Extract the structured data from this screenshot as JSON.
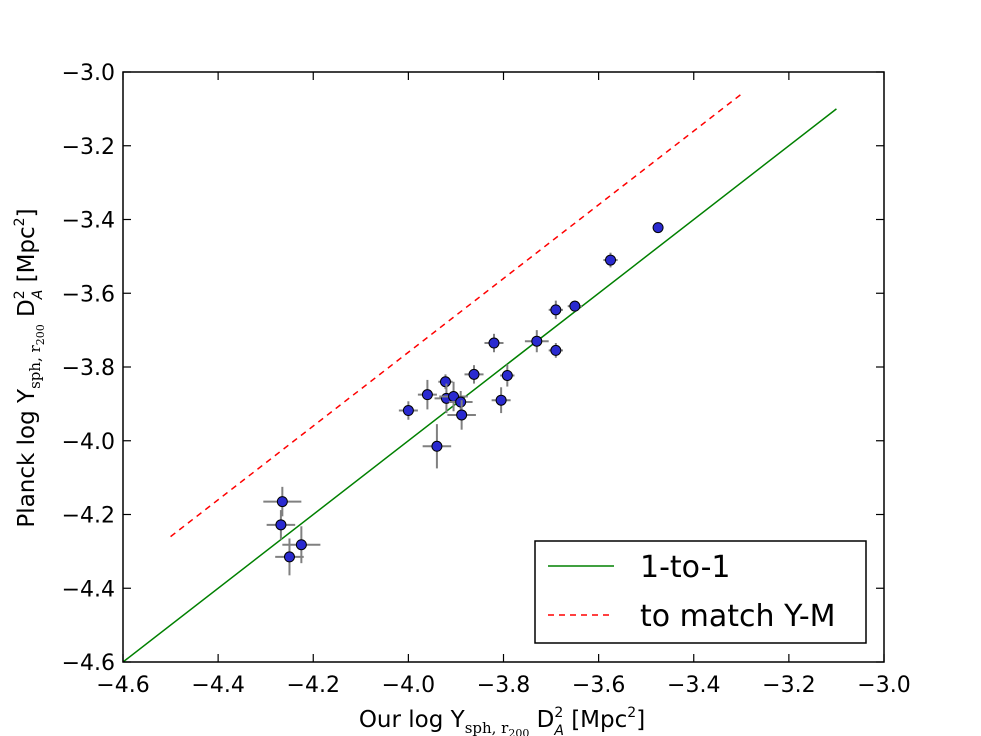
{
  "chart_data": {
    "type": "scatter",
    "xlabel": {
      "prefix": "Our log Y",
      "subscript": "sph, r",
      "subsubscript": "200",
      "mid": " D",
      "sup": "2",
      "sub2": "A",
      "unit": " [Mpc",
      "unit_sup": "2",
      "unit_end": "]"
    },
    "ylabel": {
      "prefix": "Planck log Y",
      "subscript": "sph, r",
      "subsubscript": "200",
      "mid": " D",
      "sup": "2",
      "sub2": "A",
      "unit": " [Mpc",
      "unit_sup": "2",
      "unit_end": "]"
    },
    "xlim": [
      -4.6,
      -3.0
    ],
    "ylim": [
      -4.6,
      -3.0
    ],
    "xticks": [
      -4.6,
      -4.4,
      -4.2,
      -4.0,
      -3.8,
      -3.6,
      -3.4,
      -3.2,
      -3.0
    ],
    "xtick_labels": [
      "−4.6",
      "−4.4",
      "−4.2",
      "−4.0",
      "−3.8",
      "−3.6",
      "−3.4",
      "−3.2",
      "−3.0"
    ],
    "yticks": [
      -4.6,
      -4.4,
      -4.2,
      -4.0,
      -3.8,
      -3.6,
      -3.4,
      -3.2,
      -3.0
    ],
    "ytick_labels": [
      "−4.6",
      "−4.4",
      "−4.2",
      "−4.0",
      "−3.8",
      "−3.6",
      "−3.4",
      "−3.2",
      "−3.0"
    ],
    "lines": [
      {
        "name": "1-to-1",
        "color": "#008000",
        "style": "solid",
        "x": [
          -4.6,
          -3.1
        ],
        "y": [
          -4.6,
          -3.1
        ]
      },
      {
        "name": "to match Y-M",
        "color": "#ff0000",
        "style": "dashed",
        "x": [
          -4.5,
          -3.3
        ],
        "y": [
          -4.26,
          -3.06
        ]
      }
    ],
    "points": {
      "name": "clusters",
      "marker_color": "#2a2ad0",
      "errorbar_color": "#808080",
      "data": [
        {
          "x": -4.265,
          "y": -4.165,
          "xerr": 0.04,
          "yerr": 0.04
        },
        {
          "x": -4.268,
          "y": -4.228,
          "xerr": 0.03,
          "yerr": 0.04
        },
        {
          "x": -4.25,
          "y": -4.315,
          "xerr": 0.03,
          "yerr": 0.05
        },
        {
          "x": -4.225,
          "y": -4.282,
          "xerr": 0.04,
          "yerr": 0.05
        },
        {
          "x": -4.0,
          "y": -3.918,
          "xerr": 0.02,
          "yerr": 0.025
        },
        {
          "x": -3.96,
          "y": -3.875,
          "xerr": 0.02,
          "yerr": 0.04
        },
        {
          "x": -3.94,
          "y": -4.015,
          "xerr": 0.03,
          "yerr": 0.06
        },
        {
          "x": -3.922,
          "y": -3.84,
          "xerr": 0.015,
          "yerr": 0.02
        },
        {
          "x": -3.92,
          "y": -3.885,
          "xerr": 0.025,
          "yerr": 0.04
        },
        {
          "x": -3.905,
          "y": -3.88,
          "xerr": 0.03,
          "yerr": 0.04
        },
        {
          "x": -3.89,
          "y": -3.895,
          "xerr": 0.025,
          "yerr": 0.03
        },
        {
          "x": -3.888,
          "y": -3.93,
          "xerr": 0.03,
          "yerr": 0.04
        },
        {
          "x": -3.862,
          "y": -3.82,
          "xerr": 0.02,
          "yerr": 0.025
        },
        {
          "x": -3.82,
          "y": -3.735,
          "xerr": 0.02,
          "yerr": 0.025
        },
        {
          "x": -3.805,
          "y": -3.89,
          "xerr": 0.02,
          "yerr": 0.035
        },
        {
          "x": -3.792,
          "y": -3.823,
          "xerr": 0.015,
          "yerr": 0.03
        },
        {
          "x": -3.73,
          "y": -3.73,
          "xerr": 0.025,
          "yerr": 0.03
        },
        {
          "x": -3.69,
          "y": -3.645,
          "xerr": 0.015,
          "yerr": 0.025
        },
        {
          "x": -3.69,
          "y": -3.755,
          "xerr": 0.015,
          "yerr": 0.02
        },
        {
          "x": -3.65,
          "y": -3.635,
          "xerr": 0.015,
          "yerr": 0.015
        },
        {
          "x": -3.575,
          "y": -3.51,
          "xerr": 0.015,
          "yerr": 0.02
        },
        {
          "x": -3.475,
          "y": -3.422,
          "xerr": 0.01,
          "yerr": 0.01
        }
      ]
    },
    "legend": {
      "location": "lower-right",
      "entries": [
        {
          "label": "1-to-1",
          "color": "#008000",
          "style": "solid"
        },
        {
          "label": "to match Y-M",
          "color": "#ff0000",
          "style": "dashed"
        }
      ]
    }
  }
}
